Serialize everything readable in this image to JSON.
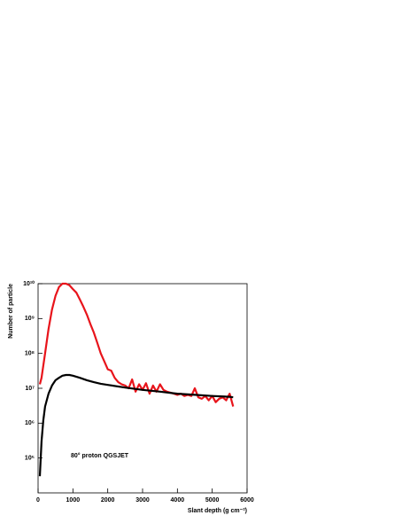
{
  "chart_data": {
    "type": "line",
    "xlabel": "Slant depth (g cm⁻²)",
    "ylabel": "Number of particle",
    "annotation": "80° proton QGSJET",
    "log_y": true,
    "xlim": [
      0,
      6000
    ],
    "xticks": [
      0,
      1000,
      2000,
      3000,
      4000,
      5000,
      6000
    ],
    "ylim": [
      10000,
      10000000000
    ],
    "yticks": [
      {
        "value": 100000,
        "label": "10⁵"
      },
      {
        "value": 1000000,
        "label": "10⁶"
      },
      {
        "value": 10000000,
        "label": "10⁷"
      },
      {
        "value": 100000000,
        "label": "10⁸"
      },
      {
        "value": 1000000000,
        "label": "10⁹"
      },
      {
        "value": 10000000000,
        "label": "10¹⁰"
      }
    ],
    "series": [
      {
        "color": "#e8141b",
        "x": [
          50,
          100,
          200,
          300,
          400,
          500,
          600,
          700,
          800,
          900,
          1000,
          1100,
          1200,
          1300,
          1400,
          1500,
          1600,
          1700,
          1800,
          1900,
          2000,
          2100,
          2200,
          2300,
          2400,
          2500,
          2600,
          2700,
          2800,
          2900,
          3000,
          3100,
          3200,
          3300,
          3400,
          3500,
          3600,
          3700,
          3800,
          3900,
          4000,
          4100,
          4200,
          4300,
          4400,
          4500,
          4600,
          4700,
          4800,
          4900,
          5000,
          5100,
          5200,
          5300,
          5400,
          5500,
          5600
        ],
        "values": [
          13000000,
          20000000,
          100000000,
          500000000,
          1800000000,
          4500000000,
          8000000000,
          10000000000,
          10000000000,
          9000000000,
          7000000000,
          5500000000,
          3500000000,
          2200000000,
          1300000000,
          700000000,
          400000000,
          200000000,
          100000000,
          60000000,
          35000000,
          32000000,
          20000000,
          15000000,
          13000000,
          12000000,
          10000000,
          18000000,
          8000000,
          13000000,
          9000000,
          14000000,
          7000000,
          12000000,
          8000000,
          13000000,
          9000000,
          8000000,
          7500000,
          7000000,
          6500000,
          7000000,
          6000000,
          6500000,
          6000000,
          10000000,
          5500000,
          5000000,
          6000000,
          4500000,
          6000000,
          4000000,
          5000000,
          5500000,
          4500000,
          7000000,
          3000000
        ]
      },
      {
        "color": "#000000",
        "x": [
          50,
          100,
          150,
          200,
          300,
          400,
          500,
          600,
          700,
          800,
          900,
          1000,
          1200,
          1400,
          1600,
          1800,
          2000,
          2500,
          3000,
          3500,
          4000,
          4500,
          5000,
          5500,
          5600
        ],
        "values": [
          30000,
          300000,
          1200000,
          3000000,
          7000000,
          12000000,
          17000000,
          20000000,
          23000000,
          24000000,
          24000000,
          23000000,
          20000000,
          17000000,
          15000000,
          13500000,
          12500000,
          10500000,
          9000000,
          8000000,
          7000000,
          6500000,
          6000000,
          5700000,
          5500000
        ]
      }
    ]
  }
}
